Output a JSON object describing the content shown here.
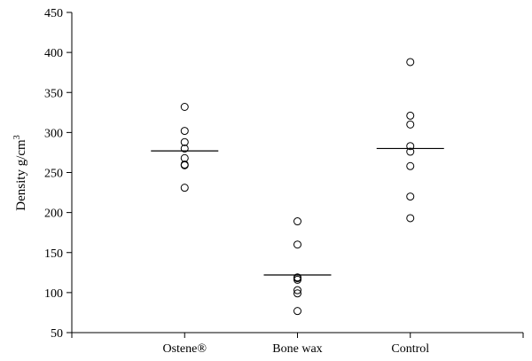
{
  "chart_data": {
    "type": "scatter",
    "title": "",
    "xlabel": "",
    "ylabel": "Density g/cm",
    "ylabel_superscript": "3",
    "ylim": [
      50,
      450
    ],
    "yticks": [
      50,
      100,
      150,
      200,
      250,
      300,
      350,
      400,
      450
    ],
    "grid": false,
    "legend": "none",
    "categories": [
      "Ostene®",
      "Bone wax",
      "Control"
    ],
    "series": [
      {
        "category": "Ostene®",
        "values": [
          332,
          302,
          288,
          280,
          268,
          260,
          259,
          231
        ],
        "mean": 277
      },
      {
        "category": "Bone wax",
        "values": [
          189,
          160,
          119,
          118,
          116,
          103,
          99,
          77
        ],
        "mean": 122
      },
      {
        "category": "Control",
        "values": [
          388,
          321,
          310,
          283,
          276,
          258,
          220,
          193
        ],
        "mean": 280
      }
    ]
  }
}
